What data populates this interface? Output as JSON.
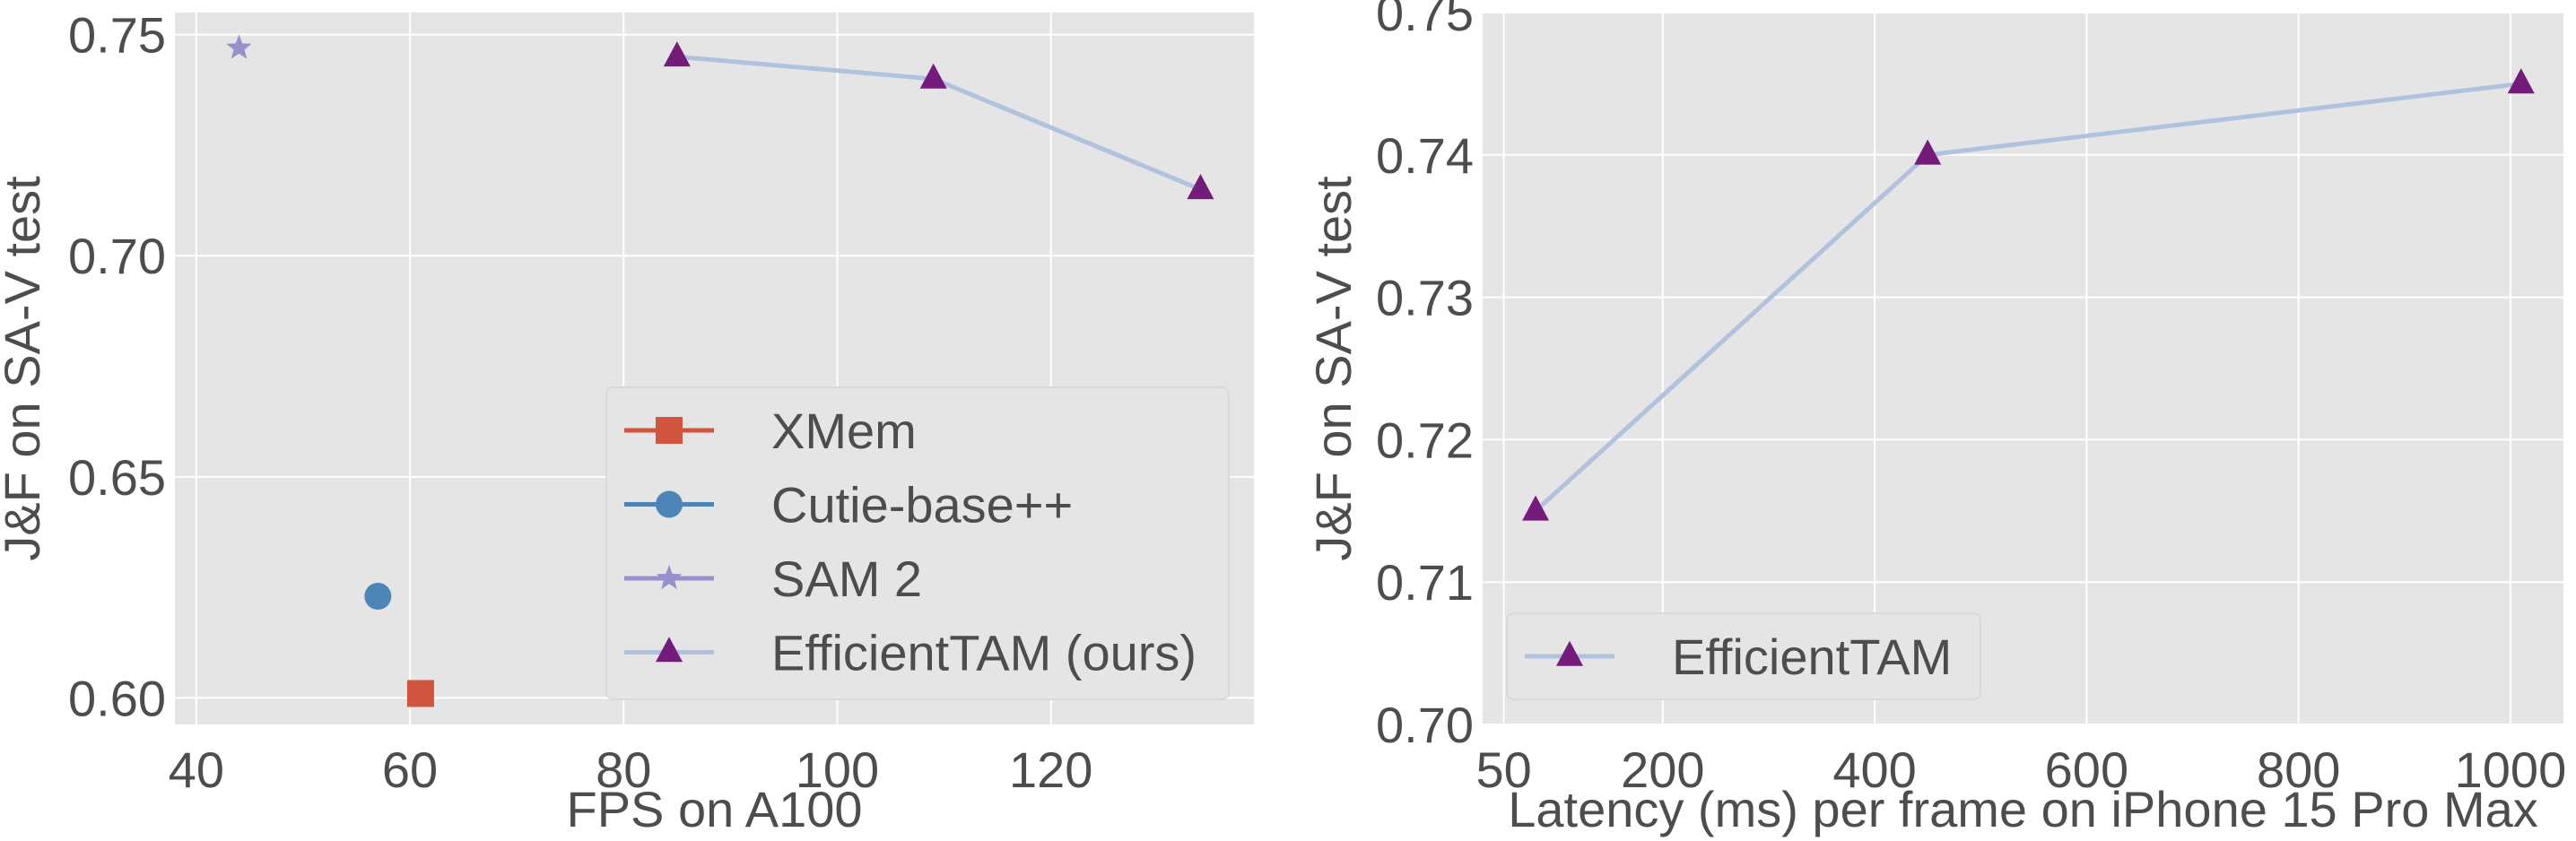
{
  "chart_data": [
    {
      "type": "scatter",
      "xlabel": "FPS on A100",
      "ylabel": "J&F on SA-V test",
      "xlim": [
        38,
        139
      ],
      "ylim": [
        0.594,
        0.755
      ],
      "xticks": [
        40,
        60,
        80,
        100,
        120
      ],
      "xtick_labels": [
        "40",
        "60",
        "80",
        "100",
        "120"
      ],
      "yticks": [
        0.6,
        0.65,
        0.7,
        0.75
      ],
      "ytick_labels": [
        "0.60",
        "0.65",
        "0.70",
        "0.75"
      ],
      "grid": true,
      "legend_position": "lower-right",
      "series": [
        {
          "name": "XMem",
          "marker": "square",
          "color": "#d1553e",
          "line": false,
          "points": [
            {
              "x": 61,
              "y": 0.601
            }
          ]
        },
        {
          "name": "Cutie-base++",
          "marker": "circle",
          "color": "#4d86b6",
          "line": false,
          "points": [
            {
              "x": 57,
              "y": 0.623
            }
          ]
        },
        {
          "name": "SAM 2",
          "marker": "star",
          "color": "#9690cc",
          "line": false,
          "points": [
            {
              "x": 44,
              "y": 0.747
            }
          ]
        },
        {
          "name": "EfficientTAM (ours)",
          "marker": "triangle",
          "color": "#741b7b",
          "line": true,
          "line_color": "#b0c2de",
          "points": [
            {
              "x": 85,
              "y": 0.745
            },
            {
              "x": 109,
              "y": 0.74
            },
            {
              "x": 134,
              "y": 0.715
            }
          ]
        }
      ]
    },
    {
      "type": "line",
      "xlabel": "Latency (ms) per frame on iPhone 15 Pro Max",
      "ylabel": "J&F on SA-V test",
      "xlim": [
        30,
        1050
      ],
      "ylim": [
        0.7,
        0.75
      ],
      "xticks": [
        50,
        200,
        400,
        600,
        800,
        1000
      ],
      "xtick_labels": [
        "50",
        "200",
        "400",
        "600",
        "800",
        "1000"
      ],
      "yticks": [
        0.7,
        0.71,
        0.72,
        0.73,
        0.74,
        0.75
      ],
      "ytick_labels": [
        "0.70",
        "0.71",
        "0.72",
        "0.73",
        "0.74",
        "0.75"
      ],
      "grid": true,
      "legend_position": "lower-left",
      "series": [
        {
          "name": "EfficientTAM",
          "marker": "triangle",
          "color": "#741b7b",
          "line": true,
          "line_color": "#b0c2de",
          "points": [
            {
              "x": 80,
              "y": 0.715
            },
            {
              "x": 450,
              "y": 0.74
            },
            {
              "x": 1010,
              "y": 0.745
            }
          ]
        }
      ]
    }
  ]
}
